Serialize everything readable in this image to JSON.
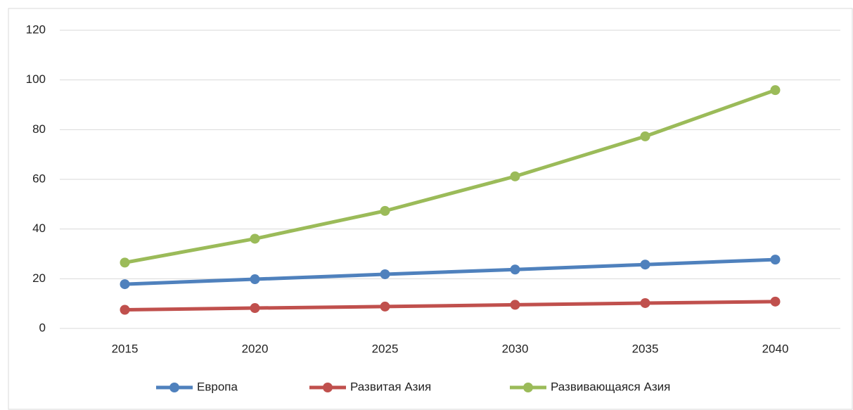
{
  "chart_data": {
    "type": "line",
    "categories": [
      "2015",
      "2020",
      "2025",
      "2030",
      "2035",
      "2040"
    ],
    "series": [
      {
        "name": "Европа",
        "color": "#4f81bd",
        "values": [
          17.8,
          19.8,
          21.8,
          23.7,
          25.7,
          27.7
        ]
      },
      {
        "name": "Развитая Азия",
        "color": "#c0504d",
        "values": [
          7.5,
          8.2,
          8.8,
          9.5,
          10.2,
          10.8
        ]
      },
      {
        "name": "Развивающаяся Азия",
        "color": "#9bbb59",
        "values": [
          26.5,
          36.1,
          47.3,
          61.2,
          77.3,
          95.9
        ]
      }
    ],
    "ylim": [
      0,
      120
    ],
    "yticks": [
      0,
      20,
      40,
      60,
      80,
      100,
      120
    ],
    "grid": true,
    "legend": "bottom"
  }
}
